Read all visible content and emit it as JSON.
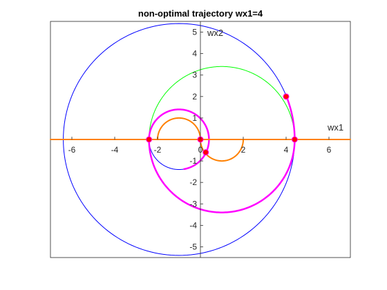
{
  "chart_data": {
    "type": "line",
    "title": "non-optimal trajectory wx1=4",
    "xlabel": "wx1",
    "ylabel": "wx2",
    "xlim": [
      -7,
      7
    ],
    "ylim": [
      -5.5,
      5.5
    ],
    "xticks": [
      -6,
      -4,
      -2,
      0,
      2,
      4,
      6
    ],
    "yticks": [
      -5,
      -4,
      -3,
      -2,
      -1,
      1,
      2,
      3,
      4,
      5
    ],
    "xtick_labels": [
      "-6",
      "-4",
      "-2",
      "0",
      "2",
      "4",
      "6"
    ],
    "ytick_labels": [
      "-5",
      "-4",
      "-3",
      "-2",
      "-1",
      "1",
      "2",
      "3",
      "4",
      "5"
    ],
    "grid": false,
    "colors": {
      "blue": "#0000ff",
      "green": "#00ff00",
      "orange": "#ff8000",
      "magenta": "#ff00ff",
      "marker": "#ff0000"
    },
    "series": [
      {
        "color": "#0000ff",
        "style": "circle",
        "center": [
          -1,
          0
        ],
        "radius": 5.4,
        "from_deg": 0,
        "to_deg": 360,
        "width": 1
      },
      {
        "color": "#0000ff",
        "style": "circle",
        "center": [
          -1,
          0
        ],
        "radius": 1.4,
        "from_deg": 180,
        "to_deg": 360,
        "width": 1
      },
      {
        "color": "#00ff00",
        "style": "circle",
        "center": [
          1,
          0
        ],
        "radius": 3.4,
        "from_deg": 0,
        "to_deg": 180,
        "width": 1
      },
      {
        "color": "#ff8000",
        "style": "circle",
        "center": [
          -1,
          0
        ],
        "radius": 1,
        "from_deg": 0,
        "to_deg": 180,
        "width": 2
      },
      {
        "color": "#ff8000",
        "style": "circle",
        "center": [
          1,
          0
        ],
        "radius": 1,
        "from_deg": 180,
        "to_deg": 360,
        "width": 2
      },
      {
        "color": "#ff00ff",
        "style": "circle",
        "center": [
          -1,
          0
        ],
        "radius": 1.4,
        "from_deg": 0,
        "to_deg": 180,
        "width": 2.5
      },
      {
        "color": "#ff00ff",
        "style": "circle",
        "center": [
          1,
          0
        ],
        "radius": 3.4,
        "from_deg": 180,
        "to_deg": 360,
        "width": 2.5
      },
      {
        "color": "#ff00ff",
        "style": "circle",
        "center": [
          -1,
          0
        ],
        "radius": 1.4,
        "from_deg": 0,
        "to_deg": -80,
        "width": 2.5
      },
      {
        "color": "#ff00ff",
        "style": "circle",
        "center": [
          -1,
          0
        ],
        "radius": 5.4,
        "from_deg": 0,
        "to_deg": 22,
        "width": 2.5
      },
      {
        "color": "#ff8000",
        "style": "polyline",
        "x": [
          -7,
          7
        ],
        "y": [
          0,
          0
        ],
        "width": 2
      }
    ],
    "markers": [
      {
        "x": -2.4,
        "y": 0
      },
      {
        "x": 0,
        "y": 0
      },
      {
        "x": 0.25,
        "y": -0.6
      },
      {
        "x": 4,
        "y": 2
      },
      {
        "x": 4.4,
        "y": 0
      }
    ]
  }
}
